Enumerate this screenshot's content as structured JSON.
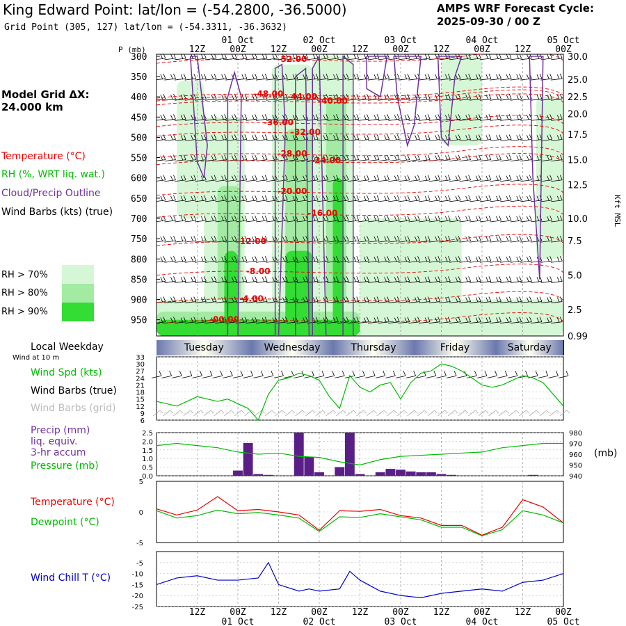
{
  "header": {
    "title": "King Edward Point:  lat/lon = (-54.2800, -36.5000)",
    "subtitle": "Grid Point (305, 127) lat/lon = (-54.3311, -36.3632)",
    "cycle_line1": "AMPS WRF Forecast Cycle:",
    "cycle_line2": "2025-09-30 / 00  Z"
  },
  "side": {
    "model_grid_line1": "Model Grid ΔX:",
    "model_grid_line2": " 24.000 km",
    "temperature": "Temperature (°C)",
    "rh": "RH (%, WRT liq. wat.)",
    "cloud": "Cloud/Precip Outline",
    "wind_barbs": "Wind Barbs (kts) (true)",
    "rh70": "RH > 70%",
    "rh80": "RH > 80%",
    "rh90": "RH > 90%",
    "local_weekday": "Local Weekday",
    "wind_at_10m": "Wind at 10 m",
    "wind_spd": "Wind Spd (kts)",
    "wind_barbs_true": "Wind Barbs (true)",
    "wind_barbs_grid": "Wind Barbs (grid)",
    "precip1": "Precip (mm)",
    "precip2": "liq. equiv.",
    "precip3": "3-hr accum",
    "pressure": "Pressure (mb)",
    "pressure_unit": "(mb)",
    "temp2": "Temperature (°C)",
    "dewpoint": "Dewpoint (°C)",
    "windchill": "Wind Chill T (°C)",
    "p_label": "P (mb)",
    "kft_label": "Kft MSL"
  },
  "colors": {
    "rh70": "#d6f7d6",
    "rh80": "#a3eba3",
    "rh90": "#33dd33",
    "temperature": "#ee0000",
    "dewpoint": "#00bb00",
    "cloud": "#7030a0",
    "precip": "#5a1f86",
    "windchill": "#0000cc",
    "daybar_dark": "#6b78ad",
    "daybar_light": "#fffff0"
  },
  "time_axis": {
    "top_tick_labels": [
      "12Z",
      "00Z",
      "12Z",
      "00Z",
      "12Z",
      "00Z",
      "12Z",
      "00Z",
      "12Z",
      "00Z"
    ],
    "bottom_tick_labels": [
      "12Z",
      "00Z",
      "12Z",
      "00Z",
      "12Z",
      "00Z",
      "12Z",
      "00Z",
      "12Z",
      "00Z"
    ],
    "date_labels": [
      "01 Oct",
      "02 Oct",
      "03 Oct",
      "04 Oct",
      "05 Oct"
    ],
    "hours_range": [
      0,
      120
    ]
  },
  "weekdays": [
    "Tuesday",
    "Wednesday",
    "Thursday",
    "Friday",
    "Saturday"
  ],
  "chart_data": [
    {
      "type": "heatmap",
      "name": "cross-section",
      "pressure_levels": [
        300,
        350,
        400,
        450,
        500,
        550,
        600,
        650,
        700,
        750,
        800,
        850,
        900,
        950
      ],
      "pressure_labels": [
        "300",
        "350",
        "400",
        "450",
        "500",
        "550",
        "600",
        "650",
        "700",
        "750",
        "800",
        "850",
        "900",
        "950"
      ],
      "height_labels_kft": [
        "30.0",
        "25.0",
        "22.5",
        "20.0",
        "17.5",
        "15.0",
        "12.5",
        "10.0",
        "7.5",
        "5.0",
        "2.5",
        "0.99"
      ],
      "height_label_pressures": [
        300,
        357,
        400,
        442,
        492,
        555,
        617,
        700,
        755,
        840,
        925,
        990
      ],
      "ylim": [
        990,
        295
      ],
      "temperature_labels": [
        {
          "text": "-52.00",
          "hour": 40,
          "p": 307
        },
        {
          "text": "-48.00",
          "hour": 33,
          "p": 393
        },
        {
          "text": "-44.00",
          "hour": 43,
          "p": 400
        },
        {
          "text": "-40.00",
          "hour": 52,
          "p": 410
        },
        {
          "text": "-36.00",
          "hour": 36,
          "p": 463
        },
        {
          "text": "-32.00",
          "hour": 44,
          "p": 487
        },
        {
          "text": "-28.00",
          "hour": 40,
          "p": 540
        },
        {
          "text": "-24.00",
          "hour": 50,
          "p": 557
        },
        {
          "text": "-20.00",
          "hour": 40,
          "p": 633
        },
        {
          "text": "-16.00",
          "hour": 49,
          "p": 687
        },
        {
          "text": "-12.00",
          "hour": 28,
          "p": 757
        },
        {
          "text": "-8.00",
          "hour": 30,
          "p": 830
        },
        {
          "text": "-4.00",
          "hour": 28,
          "p": 898
        },
        {
          "text": "-00.00",
          "hour": 20,
          "p": 950
        }
      ]
    },
    {
      "type": "line",
      "name": "wind-speed-10m",
      "x": [
        0,
        3,
        6,
        9,
        12,
        15,
        18,
        21,
        24,
        27,
        30,
        33,
        36,
        39,
        42,
        45,
        48,
        51,
        54,
        57,
        60,
        63,
        66,
        69,
        72,
        75,
        78,
        81,
        84,
        87,
        90,
        93,
        96,
        99,
        102,
        105,
        108,
        111,
        114,
        117,
        120
      ],
      "series": [
        {
          "values": [
            14,
            13,
            12,
            14,
            16,
            15,
            14,
            15,
            13,
            11,
            6,
            17,
            23,
            24,
            26,
            25,
            23,
            16,
            11,
            25,
            20,
            18,
            21,
            22,
            15,
            22,
            26,
            27,
            30,
            29,
            27,
            24,
            21,
            20,
            21,
            23,
            25,
            24,
            22,
            17,
            12
          ]
        }
      ],
      "yticks": [
        6,
        9,
        12,
        15,
        18,
        21,
        24,
        27,
        30,
        33
      ],
      "ylim": [
        6,
        33
      ]
    },
    {
      "type": "bar",
      "name": "precip-3hr",
      "x": [
        0,
        3,
        6,
        9,
        12,
        15,
        18,
        21,
        24,
        27,
        30,
        33,
        36,
        39,
        42,
        45,
        48,
        51,
        54,
        57,
        60,
        63,
        66,
        69,
        72,
        75,
        78,
        81,
        84,
        87,
        90,
        93,
        96,
        99,
        102,
        105,
        108,
        111,
        114,
        117,
        120
      ],
      "values": [
        0,
        0,
        0,
        0,
        0,
        0,
        0,
        0,
        0.3,
        1.9,
        0.1,
        0.05,
        0,
        0,
        2.5,
        1.1,
        0.2,
        0,
        0.5,
        2.5,
        0.1,
        0,
        0.2,
        0.4,
        0.35,
        0.25,
        0.2,
        0.2,
        0.1,
        0.05,
        0,
        0,
        0,
        0,
        0,
        0,
        0,
        0.05,
        0,
        0,
        0
      ],
      "yticks": [
        "0.0",
        "0.5",
        "1.0",
        "1.5",
        "2.0",
        "2.5"
      ],
      "ylim": [
        0,
        2.5
      ]
    },
    {
      "type": "line",
      "name": "pressure",
      "x": [
        0,
        6,
        12,
        18,
        24,
        30,
        36,
        42,
        48,
        54,
        60,
        66,
        72,
        78,
        84,
        90,
        96,
        102,
        108,
        114,
        120
      ],
      "values": [
        968,
        970,
        968,
        966,
        962,
        960,
        961,
        958,
        957,
        953,
        950,
        955,
        958,
        959,
        960,
        961,
        962,
        966,
        968,
        970,
        970
      ],
      "yticks": [
        "940",
        "950",
        "960",
        "970",
        "980"
      ],
      "ylim": [
        940,
        980
      ]
    },
    {
      "type": "line",
      "name": "temperature-dewpoint",
      "x": [
        0,
        6,
        12,
        18,
        24,
        30,
        36,
        42,
        48,
        54,
        60,
        66,
        72,
        78,
        84,
        90,
        96,
        102,
        108,
        114,
        120
      ],
      "series": [
        {
          "name": "Temperature (°C)",
          "values": [
            0.5,
            -0.5,
            0.3,
            2.5,
            0.2,
            0.4,
            0,
            -0.5,
            -3.0,
            0.2,
            0.1,
            0.4,
            -0.6,
            -1.0,
            -2.2,
            -2.2,
            -3.8,
            -2.5,
            2.0,
            0.8,
            -1.8
          ]
        },
        {
          "name": "Dewpoint (°C)",
          "values": [
            0.2,
            -1.0,
            -0.6,
            0.3,
            -0.3,
            -0.1,
            -0.5,
            -1.0,
            -3.2,
            -0.8,
            -0.9,
            -0.3,
            -0.8,
            -1.3,
            -2.5,
            -2.5,
            -3.9,
            -2.9,
            0.2,
            -0.5,
            -1.8
          ]
        }
      ],
      "yticks": [
        "5",
        "0",
        "-5"
      ],
      "ylim": [
        -5,
        5
      ]
    },
    {
      "type": "line",
      "name": "wind-chill",
      "x": [
        0,
        6,
        12,
        18,
        24,
        30,
        33,
        36,
        42,
        45,
        48,
        54,
        57,
        60,
        66,
        72,
        78,
        84,
        90,
        96,
        102,
        108,
        114,
        120
      ],
      "values": [
        -15,
        -12,
        -11,
        -13,
        -13,
        -12,
        -5,
        -15,
        -18,
        -17,
        -18,
        -17,
        -9,
        -13,
        -18,
        -20,
        -21,
        -19,
        -18,
        -17,
        -18,
        -14,
        -13,
        -10
      ],
      "yticks": [
        "-5",
        "-10",
        "-15",
        "-20",
        "-25"
      ],
      "ylim": [
        -25,
        0
      ]
    }
  ]
}
